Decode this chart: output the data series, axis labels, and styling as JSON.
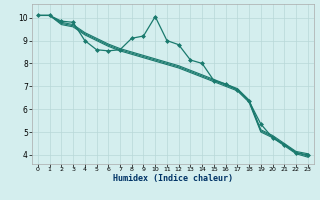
{
  "xlabel": "Humidex (Indice chaleur)",
  "bg_color": "#d4eeee",
  "grid_color": "#b8d8d8",
  "line_color": "#1a7a6e",
  "xlim": [
    -0.5,
    23.5
  ],
  "ylim": [
    3.6,
    10.6
  ],
  "yticks": [
    4,
    5,
    6,
    7,
    8,
    9,
    10
  ],
  "xticks": [
    0,
    1,
    2,
    3,
    4,
    5,
    6,
    7,
    8,
    9,
    10,
    11,
    12,
    13,
    14,
    15,
    16,
    17,
    18,
    19,
    20,
    21,
    22,
    23
  ],
  "line1_x": [
    0,
    1,
    2,
    3,
    4,
    5,
    6,
    7,
    8,
    9,
    10,
    11,
    12,
    13,
    14,
    15,
    16,
    17,
    18,
    19,
    20,
    21,
    22,
    23
  ],
  "line1_y": [
    10.1,
    10.1,
    9.85,
    9.8,
    9.0,
    8.6,
    8.55,
    8.6,
    9.1,
    9.2,
    10.05,
    9.0,
    8.82,
    8.15,
    8.0,
    7.25,
    7.1,
    6.85,
    6.35,
    5.35,
    4.75,
    4.45,
    4.1,
    4.0
  ],
  "line2_x": [
    0,
    1,
    2,
    3,
    4,
    5,
    6,
    7,
    8,
    9,
    10,
    11,
    12,
    13,
    14,
    15,
    16,
    17,
    18,
    19,
    20,
    21,
    22,
    23
  ],
  "line2_y": [
    10.1,
    10.1,
    9.8,
    9.7,
    9.35,
    9.1,
    8.85,
    8.65,
    8.5,
    8.35,
    8.2,
    8.05,
    7.9,
    7.7,
    7.5,
    7.3,
    7.1,
    6.9,
    6.4,
    5.1,
    4.85,
    4.5,
    4.15,
    4.05
  ],
  "line3_x": [
    0,
    1,
    2,
    3,
    4,
    5,
    6,
    7,
    8,
    9,
    10,
    11,
    12,
    13,
    14,
    15,
    16,
    17,
    18,
    19,
    20,
    21,
    22,
    23
  ],
  "line3_y": [
    10.1,
    10.1,
    9.75,
    9.65,
    9.3,
    9.05,
    8.8,
    8.6,
    8.45,
    8.3,
    8.15,
    8.0,
    7.85,
    7.65,
    7.45,
    7.25,
    7.05,
    6.85,
    6.35,
    5.05,
    4.8,
    4.45,
    4.1,
    3.95
  ],
  "line4_x": [
    0,
    1,
    2,
    3,
    4,
    5,
    6,
    7,
    8,
    9,
    10,
    11,
    12,
    13,
    14,
    15,
    16,
    17,
    18,
    19,
    20,
    21,
    22,
    23
  ],
  "line4_y": [
    10.1,
    10.1,
    9.7,
    9.6,
    9.25,
    9.0,
    8.75,
    8.55,
    8.4,
    8.25,
    8.1,
    7.95,
    7.8,
    7.6,
    7.4,
    7.2,
    7.0,
    6.8,
    6.3,
    5.0,
    4.75,
    4.4,
    4.05,
    3.9
  ]
}
